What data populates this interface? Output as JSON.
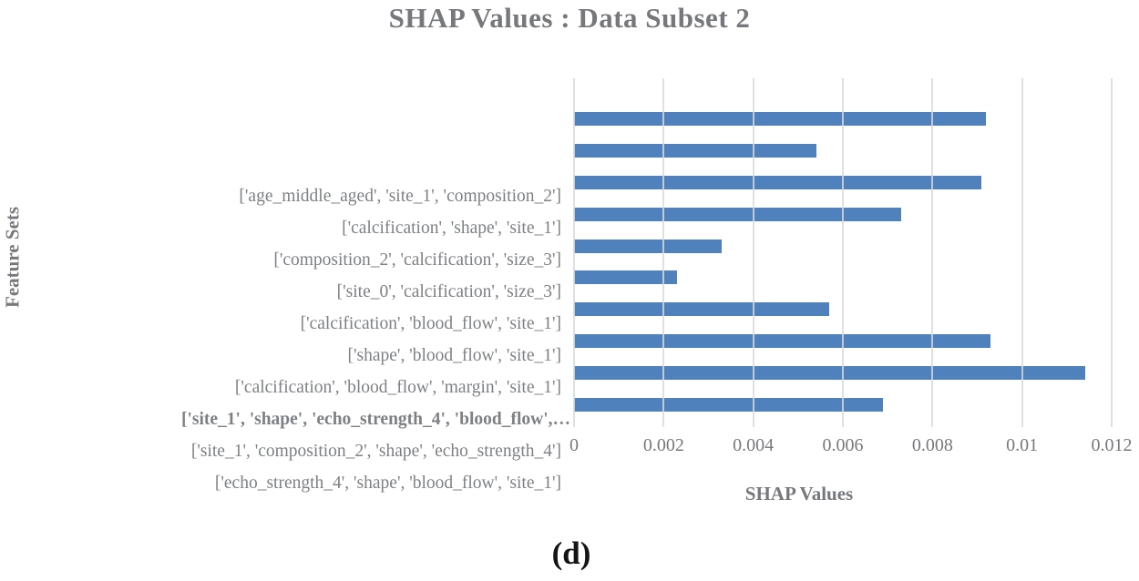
{
  "title": "SHAP Values : Data Subset 2",
  "caption": "(d)",
  "colors": {
    "bar": "#4F81BD",
    "gridline": "#D9D9D9",
    "title_text": "#77787B",
    "label_text": "#7E8084",
    "caption_text": "#141414"
  },
  "chart_data": {
    "type": "bar",
    "orientation": "horizontal",
    "title": "SHAP Values : Data Subset 2",
    "xlabel": "SHAP Values",
    "ylabel": "Feature Sets",
    "xlim": [
      0,
      0.012
    ],
    "grid": true,
    "legend": false,
    "categories": [
      "['age_middle_aged', 'site_1', 'composition_2']",
      "['calcification', 'shape', 'site_1']",
      "['composition_2', 'calcification', 'size_3']",
      "['site_0', 'calcification', 'size_3']",
      "['calcification', 'blood_flow', 'site_1']",
      "['shape', 'blood_flow', 'site_1']",
      "['calcification', 'blood_flow', 'margin', 'site_1']",
      "['site_1', 'shape', 'echo_strength_4', 'blood_flow',…",
      "['site_1', 'composition_2', 'shape', 'echo_strength_4']",
      "['echo_strength_4', 'shape', 'blood_flow', 'site_1']"
    ],
    "bold_category_index": 7,
    "values": [
      0.0092,
      0.0054,
      0.0091,
      0.0073,
      0.0033,
      0.0023,
      0.0057,
      0.0093,
      0.0114,
      0.0069
    ],
    "xticks": [
      0,
      0.002,
      0.004,
      0.006,
      0.008,
      0.01,
      0.012
    ],
    "xtick_labels": [
      "0",
      "0.002",
      "0.004",
      "0.006",
      "0.008",
      "0.01",
      "0.012"
    ]
  }
}
